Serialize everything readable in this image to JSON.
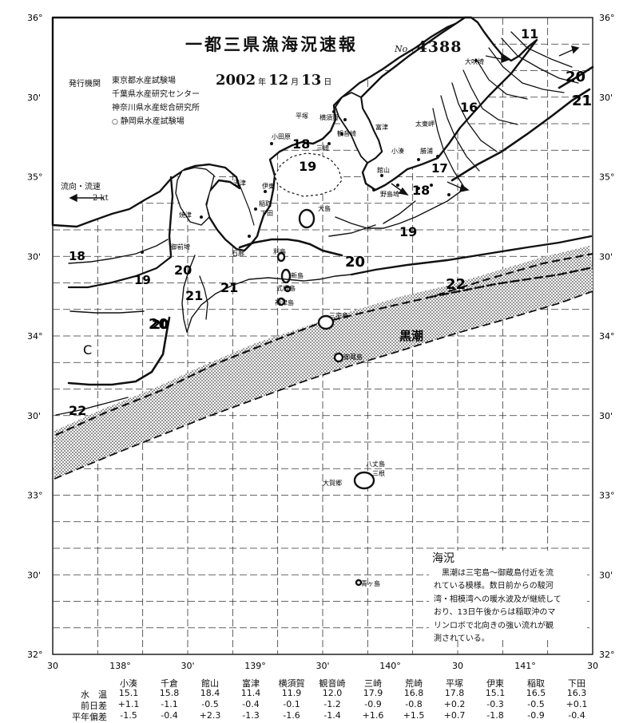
{
  "header": {
    "title": "一都三県漁海況速報",
    "issue_label": "No.",
    "issue_number": "4388",
    "agency_label": "発行機関",
    "orgs": [
      "東京都水産試験場",
      "千葉県水産研究センター",
      "神奈川県水産総合研究所",
      "静岡県水産試験場"
    ],
    "year": "2002",
    "year_unit": "年",
    "month": "12",
    "month_unit": "月",
    "day": "13",
    "day_unit": "日"
  },
  "legend": {
    "title": "流向・流速",
    "speed": "2 kt"
  },
  "current_label": "黒潮",
  "cold_label": "C",
  "lat_labels": [
    "36°",
    "30'",
    "35°",
    "30'",
    "34°",
    "30'",
    "33°",
    "30'",
    "32°"
  ],
  "lon_labels": [
    "30",
    "138°",
    "30'",
    "139°",
    "30'",
    "140°",
    "30",
    "141°",
    "30"
  ],
  "isotherm_labels": [
    "11",
    "16",
    "18",
    "19",
    "17",
    "18",
    "19",
    "20",
    "20",
    "21",
    "18",
    "19",
    "20",
    "21",
    "22",
    "20",
    "22"
  ],
  "right_temps": [
    "20",
    "21"
  ],
  "places": [
    "大吠埼",
    "太東岬",
    "勝浦",
    "小湊",
    "館山",
    "野島埼",
    "平塚",
    "横須賀",
    "富津",
    "観音崎",
    "三崎",
    "小田原",
    "伊東",
    "稲取",
    "下田",
    "石廊",
    "沼津",
    "焼津",
    "御前埼",
    "大島",
    "利島",
    "新島",
    "式根島",
    "神津島",
    "三宅島",
    "御蔵島",
    "八丈島",
    "三根",
    "大賀郷",
    "青ヶ島"
  ],
  "comment": {
    "title": "海況",
    "lines": [
      "黒潮は三宅島～御蔵島付近を流",
      "れている模様。数日前からの駿河",
      "湾・相模湾への暖水波及が継続して",
      "おり、13日午後からは稲取沖のマ",
      "リンロボで北向きの強い流れが観",
      "測されている。"
    ]
  },
  "table": {
    "stations": [
      "小湊",
      "千倉",
      "館山",
      "富津",
      "横須賀",
      "観音崎",
      "三崎",
      "荒崎",
      "平塚",
      "伊東",
      "稲取",
      "下田"
    ],
    "rows": [
      {
        "label": "水　温",
        "values": [
          "15.1",
          "15.8",
          "18.4",
          "11.4",
          "11.9",
          "12.0",
          "17.9",
          "16.8",
          "17.8",
          "15.1",
          "16.5",
          "16.3"
        ]
      },
      {
        "label": "前日差",
        "values": [
          "+1.1",
          "-1.1",
          "-0.5",
          "-0.4",
          "-0.1",
          "-1.2",
          "-0.9",
          "-0.8",
          "+0.2",
          "-0.3",
          "-0.5",
          "+0.1"
        ]
      },
      {
        "label": "平年偏差",
        "values": [
          "-1.5",
          "-0.4",
          "+2.3",
          "-1.3",
          "-1.6",
          "-1.4",
          "+1.6",
          "+1.5",
          "+0.7",
          "-1.8",
          "-0.9",
          "-0.4"
        ]
      }
    ]
  },
  "colors": {
    "ink": "#111111",
    "shade": "#8a8a8a",
    "paper": "#ffffff"
  }
}
